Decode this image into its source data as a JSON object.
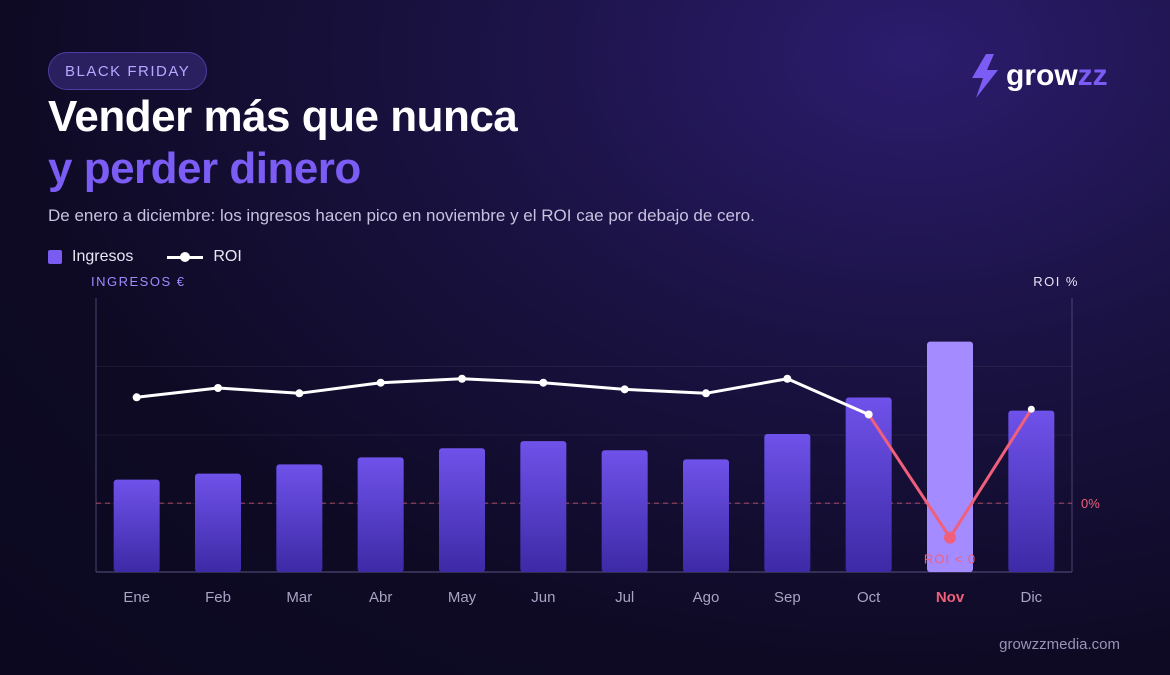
{
  "badge": "BLACK FRIDAY",
  "title_line1": "Vender más que nunca",
  "title_line2": "y perder dinero",
  "subtitle": "De enero a diciembre: los ingresos hacen pico en noviembre y el ROI cae por debajo de cero.",
  "legend": {
    "bars": "Ingresos",
    "line": "ROI"
  },
  "logo": {
    "text_a": "grow",
    "text_b": "zz"
  },
  "footer": "growzzmedia.com",
  "colors": {
    "bar": "#6b4ee6",
    "bar_highlight": "#a48bff",
    "line": "#ffffff",
    "loss": "#f0607a",
    "accent": "#7b5cf5"
  },
  "chart_data": {
    "type": "bar",
    "categories": [
      "Ene",
      "Feb",
      "Mar",
      "Abr",
      "May",
      "Jun",
      "Jul",
      "Ago",
      "Sep",
      "Oct",
      "Nov",
      "Dic"
    ],
    "highlight_category": "Nov",
    "ylabel_left": "INGRESOS €",
    "ylabel_right": "ROI %",
    "zero_label": "0%",
    "annotation": "ROI < 0",
    "series": [
      {
        "name": "Ingresos",
        "type": "bar",
        "axis": "left",
        "values": [
          91,
          97,
          106,
          113,
          122,
          129,
          120,
          111,
          136,
          172,
          227,
          159
        ]
      },
      {
        "name": "ROI",
        "type": "line",
        "axis": "right",
        "values": [
          80,
          87,
          83,
          91,
          94,
          91,
          86,
          83,
          94,
          67,
          -26,
          71
        ]
      }
    ],
    "left_ylim": [
      0,
      270
    ],
    "right_ylim": [
      -52,
      155
    ],
    "grid": true
  }
}
